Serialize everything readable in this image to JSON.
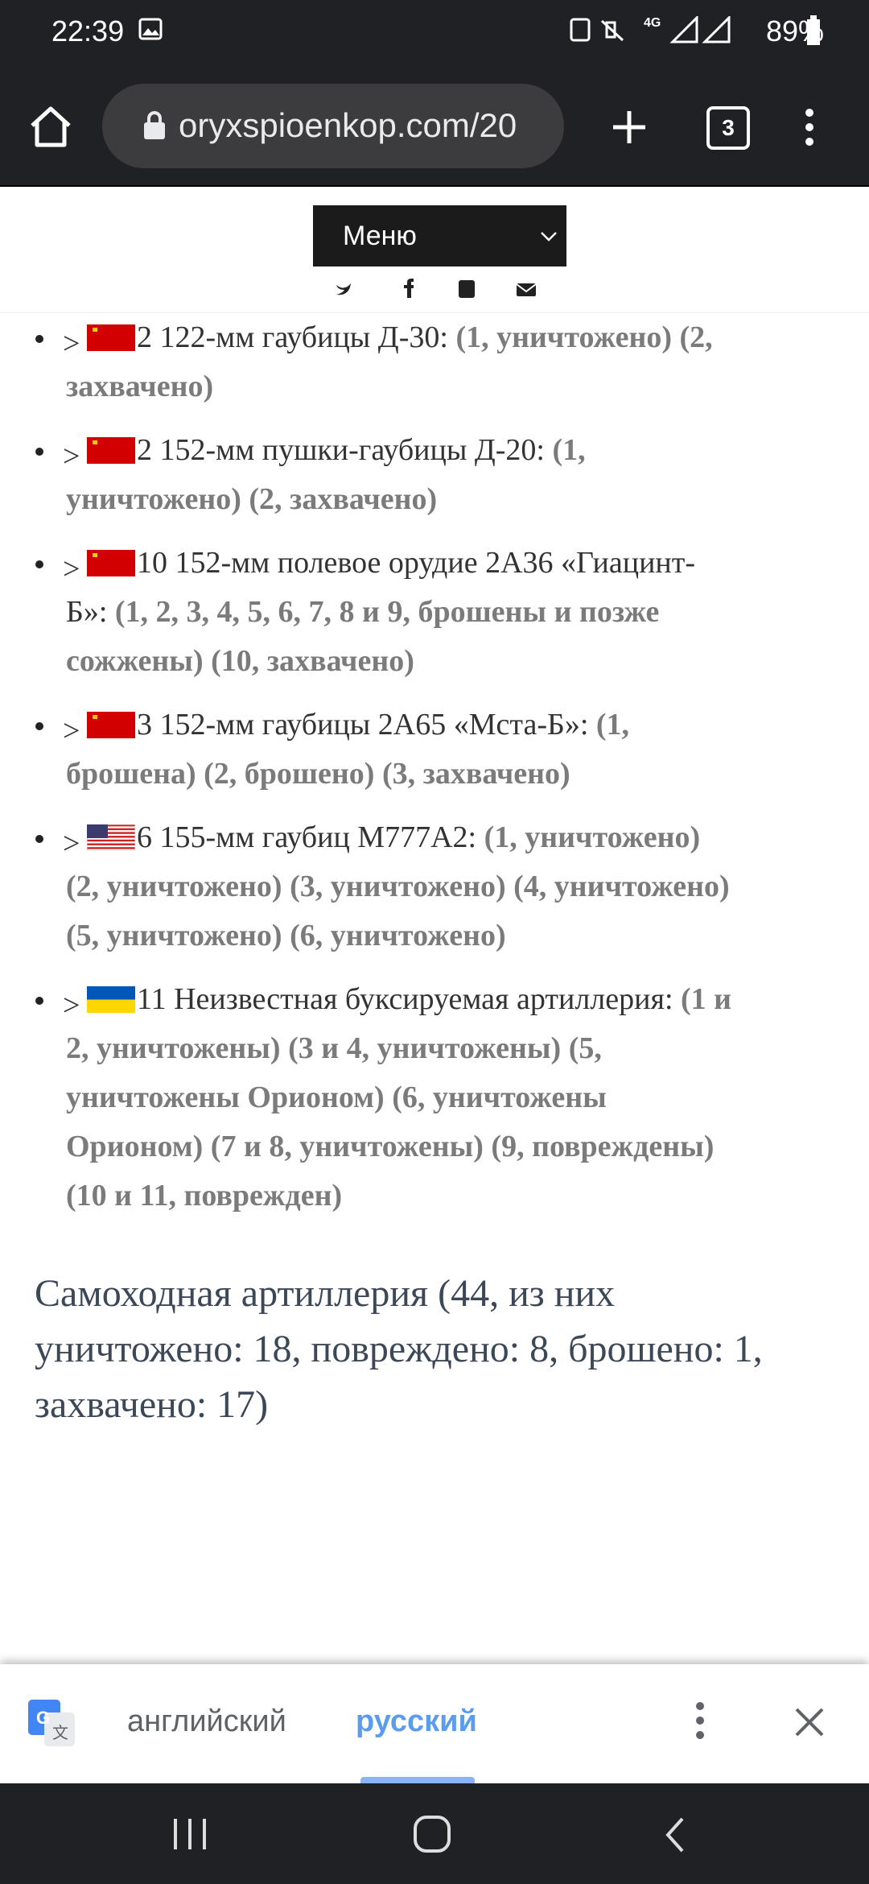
{
  "status_bar": {
    "time": "22:39",
    "network": "4G",
    "battery": "89%"
  },
  "browser_toolbar": {
    "url": "oryxspioenkop.com/20",
    "tab_count": "3"
  },
  "site_header": {
    "menu": "Меню"
  },
  "items": [
    {
      "marker": ">",
      "text": "2 122-мм гаубицы Д-30:",
      "details": [
        "(1, уничтожено)",
        "(2, захвачено)"
      ]
    },
    {
      "marker": ">",
      "text": "2 152-мм пушки-гаубицы Д-20:",
      "details": [
        "(1, уничтожено)",
        "(2, захвачено)"
      ]
    },
    {
      "marker": ">",
      "text": "10 152-мм полевое орудие 2А36 «Гиацинт-Б»:",
      "details": [
        "(1, 2, 3, 4, 5, 6, 7, 8 и 9, брошены и позже сожжены)",
        "(10, захвачено)"
      ]
    },
    {
      "marker": ">",
      "text": "3 152-мм гаубицы 2А65 «Мста-Б»:",
      "details": [
        "(1, брошена)",
        "(2, брошено)",
        "(3, захвачено)"
      ]
    },
    {
      "marker": ">",
      "text": "6 155-мм гаубиц M777A2:",
      "details": [
        "(1, уничтожено)",
        "(2, уничтожено)",
        "(3, уничтожено)",
        "(4, уничтожено)",
        "(5, уничтожено)",
        "(6, уничтожено)"
      ]
    },
    {
      "marker": ">",
      "text": "11 Неизвестная буксируемая артиллерия:",
      "details": [
        "(1 и 2, уничтожены)",
        "(3 и 4, уничтожены)",
        "(5, уничтожены Орионом)",
        "(6, уничтожены Орионом)",
        "(7 и 8, уничтожены)",
        "(9, повреждены)",
        "(10 и 11, поврежден)"
      ]
    }
  ],
  "section_heading": "Самоходная артиллерия (44, из них уничтожено: 18, повреждено: 8, брошено: 1, захвачено: 17)",
  "translate_bar": {
    "source_language": "английский",
    "target_language": "русский"
  }
}
